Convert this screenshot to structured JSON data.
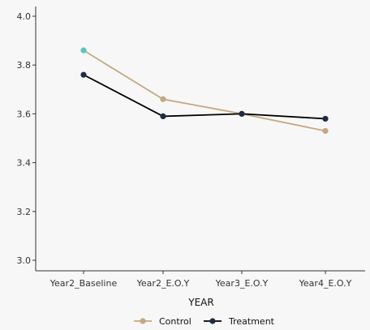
{
  "chart_data": {
    "type": "line",
    "title": "",
    "xlabel": "YEAR",
    "ylabel": "",
    "categories": [
      "Year2_Baseline",
      "Year2_E.O.Y",
      "Year3_E.O.Y",
      "Year4_E.O.Y"
    ],
    "ylim": [
      3.0,
      4.0
    ],
    "yticks": [
      "3.0",
      "3.2",
      "3.4",
      "3.6",
      "3.8",
      "4.0"
    ],
    "grid": false,
    "legend_position": "bottom",
    "series": [
      {
        "name": "Control",
        "values": [
          3.86,
          3.66,
          3.6,
          3.53
        ],
        "color": "#c4a882"
      },
      {
        "name": "Treatment",
        "values": [
          3.76,
          3.59,
          3.6,
          3.58
        ],
        "color": "#000000"
      }
    ],
    "highlight_point_color": "#5bc4bf",
    "point_color_treatment": "#1f2a44"
  }
}
